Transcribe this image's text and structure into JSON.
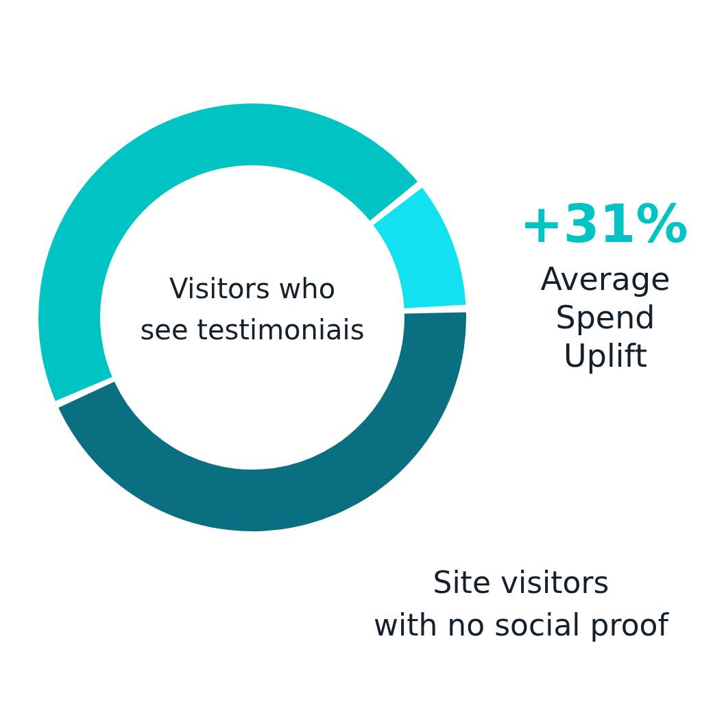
{
  "chart_data": {
    "type": "donut",
    "categories": [
      null,
      "Average\nSpend\nUplift",
      "Site visitors\nwith no social proof"
    ],
    "values": [
      46,
      10,
      44
    ],
    "colors": [
      "#00c4c4",
      "#12e2ef",
      "#0b6f82"
    ],
    "annotations": [
      "Visitors who\nsee testimoniais",
      "+31%"
    ]
  }
}
